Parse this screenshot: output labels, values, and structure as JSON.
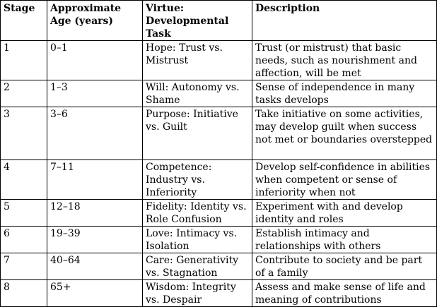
{
  "table": {
    "headers": [
      "Stage",
      "Approximate Age (years)",
      "Virtue: Developmental Task",
      "Description"
    ],
    "rows": [
      {
        "stage": "1",
        "age": "0–1",
        "virtue": "Hope: Trust vs. Mistrust",
        "description": "Trust (or mistrust) that basic needs, such as nourishment and affection, will be met"
      },
      {
        "stage": "2",
        "age": "1–3",
        "virtue": "Will: Autonomy vs. Shame",
        "description": "Sense of independence in many tasks develops"
      },
      {
        "stage": "3",
        "age": "3–6",
        "virtue": "Purpose: Initiative vs. Guilt",
        "description": "Take initiative on some activities, may develop guilt when success not met or boundaries overstepped"
      },
      {
        "stage": "4",
        "age": "7–11",
        "virtue": "Competence: Industry vs. Inferiority",
        "description": "Develop self-confidence in abilities when competent or sense of inferiority when not"
      },
      {
        "stage": "5",
        "age": "12–18",
        "virtue": "Fidelity: Identity vs. Role Confusion",
        "description": "Experiment with and develop identity and roles"
      },
      {
        "stage": "6",
        "age": "19–39",
        "virtue": "Love: Intimacy vs. Isolation",
        "description": "Establish intimacy and relationships with others"
      },
      {
        "stage": "7",
        "age": "40–64",
        "virtue": "Care: Generativity vs. Stagnation",
        "description": "Contribute to society and be part of a family"
      },
      {
        "stage": "8",
        "age": "65+",
        "virtue": "Wisdom: Integrity vs. Despair",
        "description": "Assess and make sense of life and meaning of contributions"
      }
    ]
  }
}
